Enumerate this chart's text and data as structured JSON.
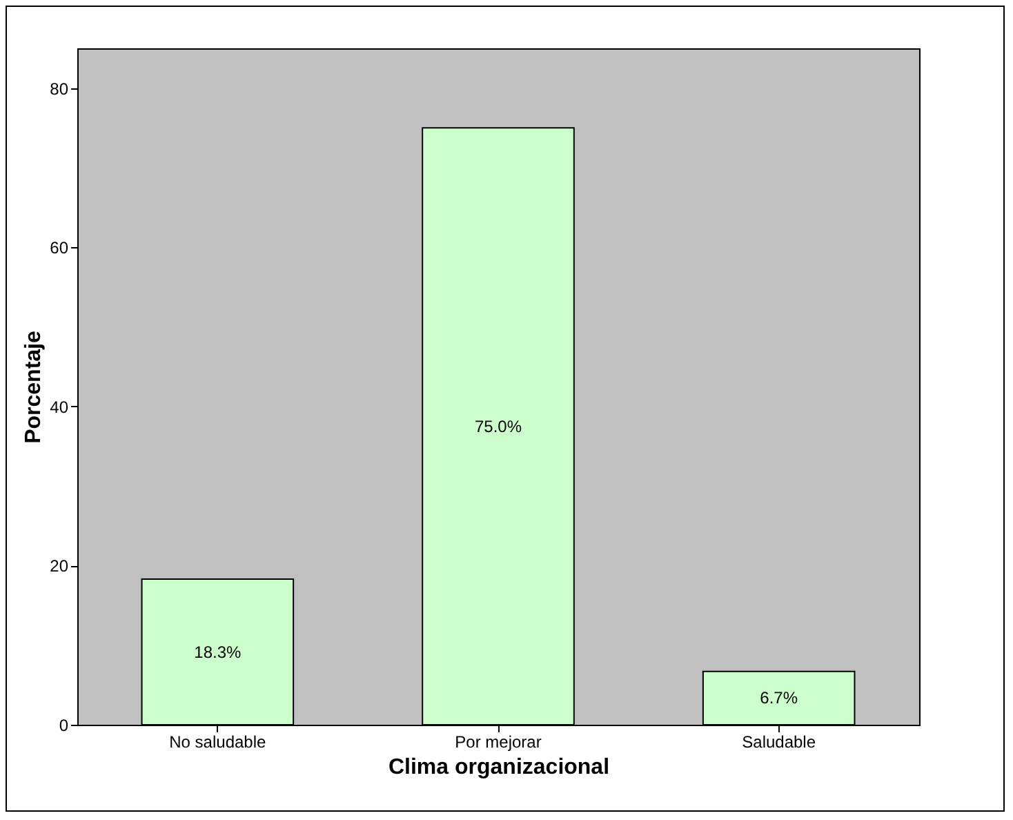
{
  "chart_data": {
    "type": "bar",
    "xlabel": "Clima organizacional",
    "ylabel": "Porcentaje",
    "categories": [
      "No saludable",
      "Por mejorar",
      "Saludable"
    ],
    "values": [
      18.3,
      75.0,
      6.7
    ],
    "value_labels": [
      "18.3%",
      "75.0%",
      "6.7%"
    ],
    "color": "#ccffcc",
    "ylim": [
      0,
      85
    ],
    "yticks": [
      0,
      20,
      40,
      60,
      80
    ],
    "grid": false
  }
}
